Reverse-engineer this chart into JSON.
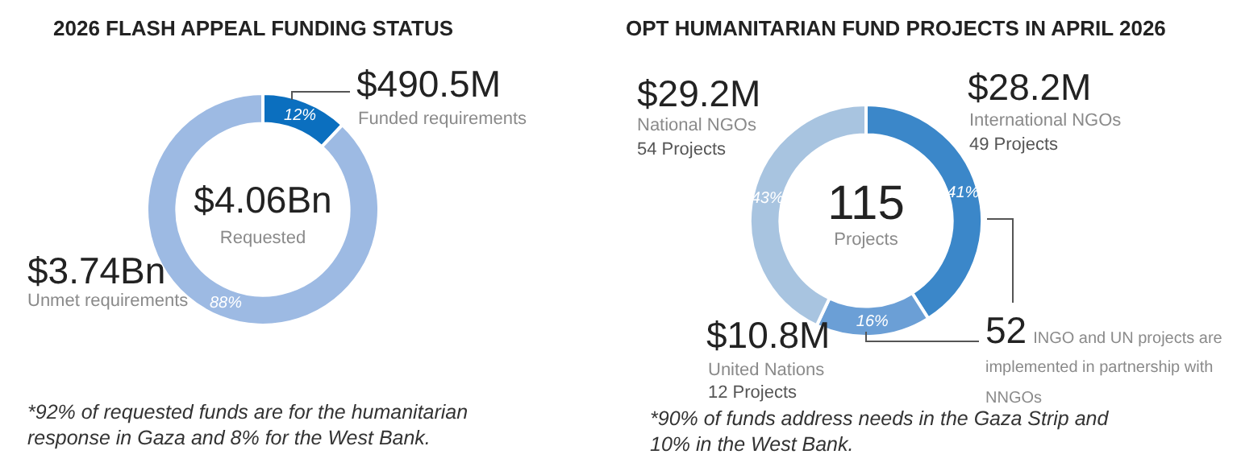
{
  "chart_data": [
    {
      "type": "donut",
      "title": "2026 FLASH APPEAL FUNDING STATUS",
      "categories": [
        "Funded requirements",
        "Unmet requirements"
      ],
      "values": [
        12,
        88
      ],
      "value_labels": [
        "12%",
        "88%"
      ],
      "colors": [
        "#0b6fbf",
        "#9dbae3"
      ],
      "annotations": [
        "$490.5M",
        "$4.06Bn",
        "Requested",
        "$3.74Bn",
        "*92% of requested funds are for the humanitarian response in Gaza and 8% for the West Bank."
      ]
    },
    {
      "type": "donut",
      "title": "OPT HUMANITARIAN FUND PROJECTS IN APRIL 2026",
      "categories": [
        "International NGOs",
        "United Nations",
        "National NGOs"
      ],
      "values": [
        41,
        16,
        43
      ],
      "value_labels": [
        "41%",
        "16%",
        "43%"
      ],
      "colors": [
        "#3b87c9",
        "#6b9fd6",
        "#a8c4e0"
      ],
      "annotations": [
        "$28.2M",
        "49 Projects",
        "$10.8M",
        "12 Projects",
        "$29.2M",
        "54 Projects",
        "115",
        "Projects",
        "52",
        "INGO and UN projects are implemented in partnership with NNGOs",
        "*90% of funds address needs in the Gaza Strip and 10% in the West Bank."
      ]
    }
  ]
}
